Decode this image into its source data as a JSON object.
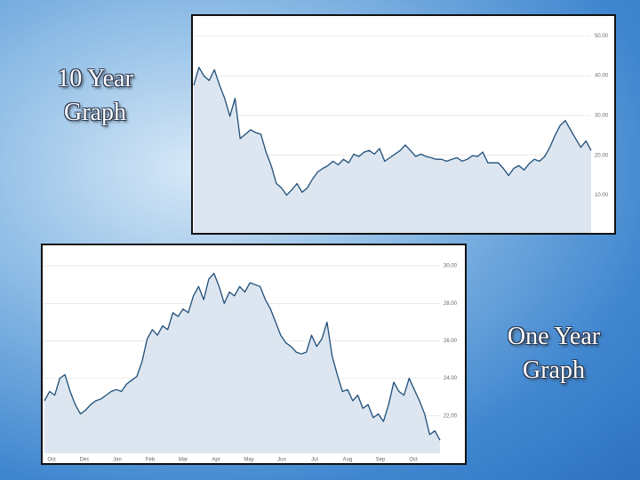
{
  "chart_data": [
    {
      "type": "area",
      "color": "#1f4e79",
      "fill": "#dde6f0",
      "grid": true,
      "ylim": [
        0.5,
        55
      ],
      "yticks": [
        {
          "value": 10,
          "label": "10.00"
        },
        {
          "value": 20,
          "label": "20.00"
        },
        {
          "value": 30,
          "label": "30.00"
        },
        {
          "value": 40,
          "label": "40.00"
        },
        {
          "value": 50,
          "label": "50.00"
        }
      ],
      "values": [
        37.6,
        42.1,
        39.9,
        38.8,
        41.5,
        37.6,
        34.3,
        29.8,
        34.3,
        24.2,
        25.3,
        26.4,
        25.7,
        25.3,
        20.8,
        17.4,
        12.9,
        11.8,
        10.0,
        11.3,
        12.9,
        10.7,
        11.8,
        14.0,
        15.8,
        16.7,
        17.4,
        18.5,
        17.6,
        19.0,
        18.1,
        20.3,
        19.7,
        20.8,
        21.2,
        20.3,
        21.7,
        18.5,
        19.4,
        20.3,
        21.2,
        22.6,
        21.2,
        19.7,
        20.3,
        19.7,
        19.4,
        19.0,
        19.0,
        18.5,
        19.0,
        19.4,
        18.5,
        19.0,
        19.9,
        19.7,
        20.8,
        18.1,
        18.1,
        18.1,
        16.7,
        14.9,
        16.7,
        17.4,
        16.3,
        17.9,
        19.0,
        18.5,
        19.7,
        22.0,
        25.0,
        27.5,
        28.7,
        26.4,
        24.2,
        22.0,
        23.6,
        21.2
      ]
    },
    {
      "type": "area",
      "color": "#1f4e79",
      "fill": "#dde6f0",
      "grid": true,
      "ylim": [
        20,
        31
      ],
      "yticks": [
        {
          "value": 22,
          "label": "22.00"
        },
        {
          "value": 24,
          "label": "24.00"
        },
        {
          "value": 26,
          "label": "26.00"
        },
        {
          "value": 28,
          "label": "28.00"
        },
        {
          "value": 30,
          "label": "30.00"
        }
      ],
      "xtick_labels": [
        "Oct",
        "Dec",
        "Jan",
        "Feb",
        "Mar",
        "Apr",
        "May",
        "Jun",
        "Jul",
        "Aug",
        "Sep",
        "Oct"
      ],
      "values": [
        22.8,
        23.3,
        23.1,
        24.0,
        24.2,
        23.3,
        22.6,
        22.1,
        22.3,
        22.6,
        22.8,
        22.9,
        23.1,
        23.3,
        23.4,
        23.3,
        23.7,
        23.9,
        24.1,
        24.9,
        26.1,
        26.6,
        26.3,
        26.8,
        26.6,
        27.5,
        27.3,
        27.7,
        27.5,
        28.4,
        28.9,
        28.2,
        29.3,
        29.6,
        28.9,
        28.0,
        28.6,
        28.4,
        28.9,
        28.6,
        29.1,
        29.0,
        28.9,
        28.2,
        27.7,
        27.0,
        26.3,
        25.9,
        25.7,
        25.4,
        25.3,
        25.4,
        26.3,
        25.7,
        26.1,
        27.0,
        25.2,
        24.2,
        23.3,
        23.4,
        22.8,
        23.1,
        22.4,
        22.6,
        21.9,
        22.1,
        21.7,
        22.6,
        23.8,
        23.3,
        23.1,
        24.0,
        23.4,
        22.8,
        22.1,
        21.0,
        21.2,
        20.7
      ]
    }
  ],
  "captions": [
    "10 Year Graph",
    "One Year Graph"
  ]
}
